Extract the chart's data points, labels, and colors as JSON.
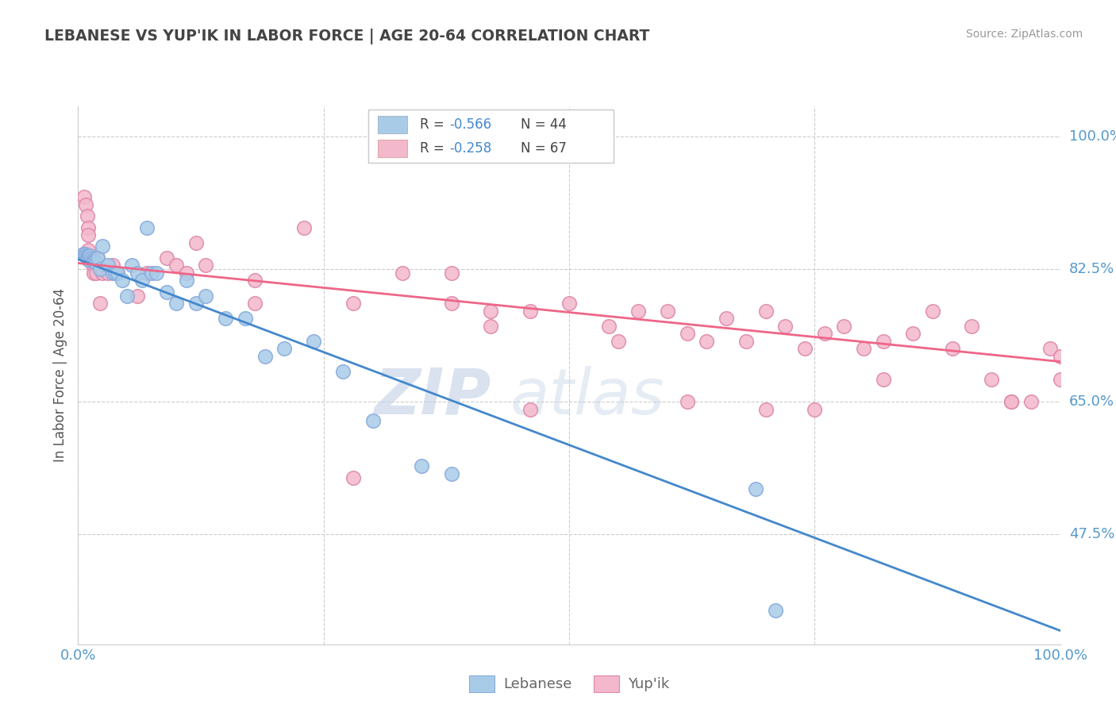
{
  "title": "LEBANESE VS YUP'IK IN LABOR FORCE | AGE 20-64 CORRELATION CHART",
  "source_text": "Source: ZipAtlas.com",
  "ylabel": "In Labor Force | Age 20-64",
  "xlim": [
    0.0,
    1.0
  ],
  "ylim": [
    0.33,
    1.04
  ],
  "y_tick_positions_right": [
    1.0,
    0.825,
    0.65,
    0.475
  ],
  "y_tick_labels_right": [
    "100.0%",
    "82.5%",
    "65.0%",
    "47.5%"
  ],
  "watermark_zip": "ZIP",
  "watermark_atlas": "atlas",
  "background_color": "#ffffff",
  "grid_color": "#cccccc",
  "title_color": "#444444",
  "scatter_blue_color": "#a8cce8",
  "scatter_pink_color": "#f4b8cc",
  "line_blue_color": "#4488cc",
  "line_pink_color": "#ee6688",
  "scatter_blue_edgecolor": "#88aadd",
  "scatter_pink_edgecolor": "#dd88aa",
  "legend_blue_color": "#a8cce8",
  "legend_pink_color": "#f4b8cc",
  "scatter_blue_x": [
    0.005,
    0.007,
    0.008,
    0.009,
    0.01,
    0.01,
    0.01,
    0.012,
    0.013,
    0.015,
    0.016,
    0.017,
    0.018,
    0.02,
    0.022,
    0.025,
    0.03,
    0.035,
    0.038,
    0.04,
    0.045,
    0.05,
    0.055,
    0.06,
    0.065,
    0.07,
    0.075,
    0.08,
    0.09,
    0.1,
    0.11,
    0.12,
    0.13,
    0.15,
    0.17,
    0.19,
    0.21,
    0.24,
    0.27,
    0.3,
    0.35,
    0.38,
    0.69,
    0.71
  ],
  "scatter_blue_y": [
    0.845,
    0.845,
    0.843,
    0.842,
    0.841,
    0.84,
    0.838,
    0.843,
    0.84,
    0.838,
    0.836,
    0.835,
    0.833,
    0.84,
    0.825,
    0.855,
    0.83,
    0.82,
    0.82,
    0.82,
    0.81,
    0.79,
    0.83,
    0.82,
    0.81,
    0.88,
    0.82,
    0.82,
    0.795,
    0.78,
    0.81,
    0.78,
    0.79,
    0.76,
    0.76,
    0.71,
    0.72,
    0.73,
    0.69,
    0.625,
    0.565,
    0.555,
    0.535,
    0.375
  ],
  "scatter_pink_x": [
    0.006,
    0.008,
    0.009,
    0.01,
    0.01,
    0.01,
    0.012,
    0.013,
    0.015,
    0.016,
    0.018,
    0.02,
    0.022,
    0.025,
    0.03,
    0.035,
    0.04,
    0.06,
    0.07,
    0.09,
    0.1,
    0.11,
    0.12,
    0.13,
    0.18,
    0.23,
    0.28,
    0.33,
    0.38,
    0.42,
    0.46,
    0.5,
    0.54,
    0.57,
    0.6,
    0.62,
    0.64,
    0.66,
    0.68,
    0.7,
    0.72,
    0.74,
    0.76,
    0.78,
    0.8,
    0.82,
    0.85,
    0.87,
    0.89,
    0.91,
    0.93,
    0.95,
    0.97,
    0.99,
    1.0,
    0.42,
    0.28,
    0.18,
    0.55,
    0.38,
    0.46,
    0.62,
    0.7,
    0.75,
    0.82,
    0.95,
    1.0
  ],
  "scatter_pink_y": [
    0.92,
    0.91,
    0.895,
    0.88,
    0.87,
    0.85,
    0.84,
    0.835,
    0.83,
    0.82,
    0.82,
    0.84,
    0.78,
    0.82,
    0.82,
    0.83,
    0.82,
    0.79,
    0.82,
    0.84,
    0.83,
    0.82,
    0.86,
    0.83,
    0.81,
    0.88,
    0.78,
    0.82,
    0.82,
    0.75,
    0.77,
    0.78,
    0.75,
    0.77,
    0.77,
    0.74,
    0.73,
    0.76,
    0.73,
    0.77,
    0.75,
    0.72,
    0.74,
    0.75,
    0.72,
    0.73,
    0.74,
    0.77,
    0.72,
    0.75,
    0.68,
    0.65,
    0.65,
    0.72,
    0.68,
    0.77,
    0.55,
    0.78,
    0.73,
    0.78,
    0.64,
    0.65,
    0.64,
    0.64,
    0.68,
    0.65,
    0.71
  ],
  "blue_line_x": [
    0.0,
    1.0
  ],
  "blue_line_y": [
    0.838,
    0.348
  ],
  "pink_line_x": [
    0.0,
    1.0
  ],
  "pink_line_y": [
    0.833,
    0.703
  ]
}
